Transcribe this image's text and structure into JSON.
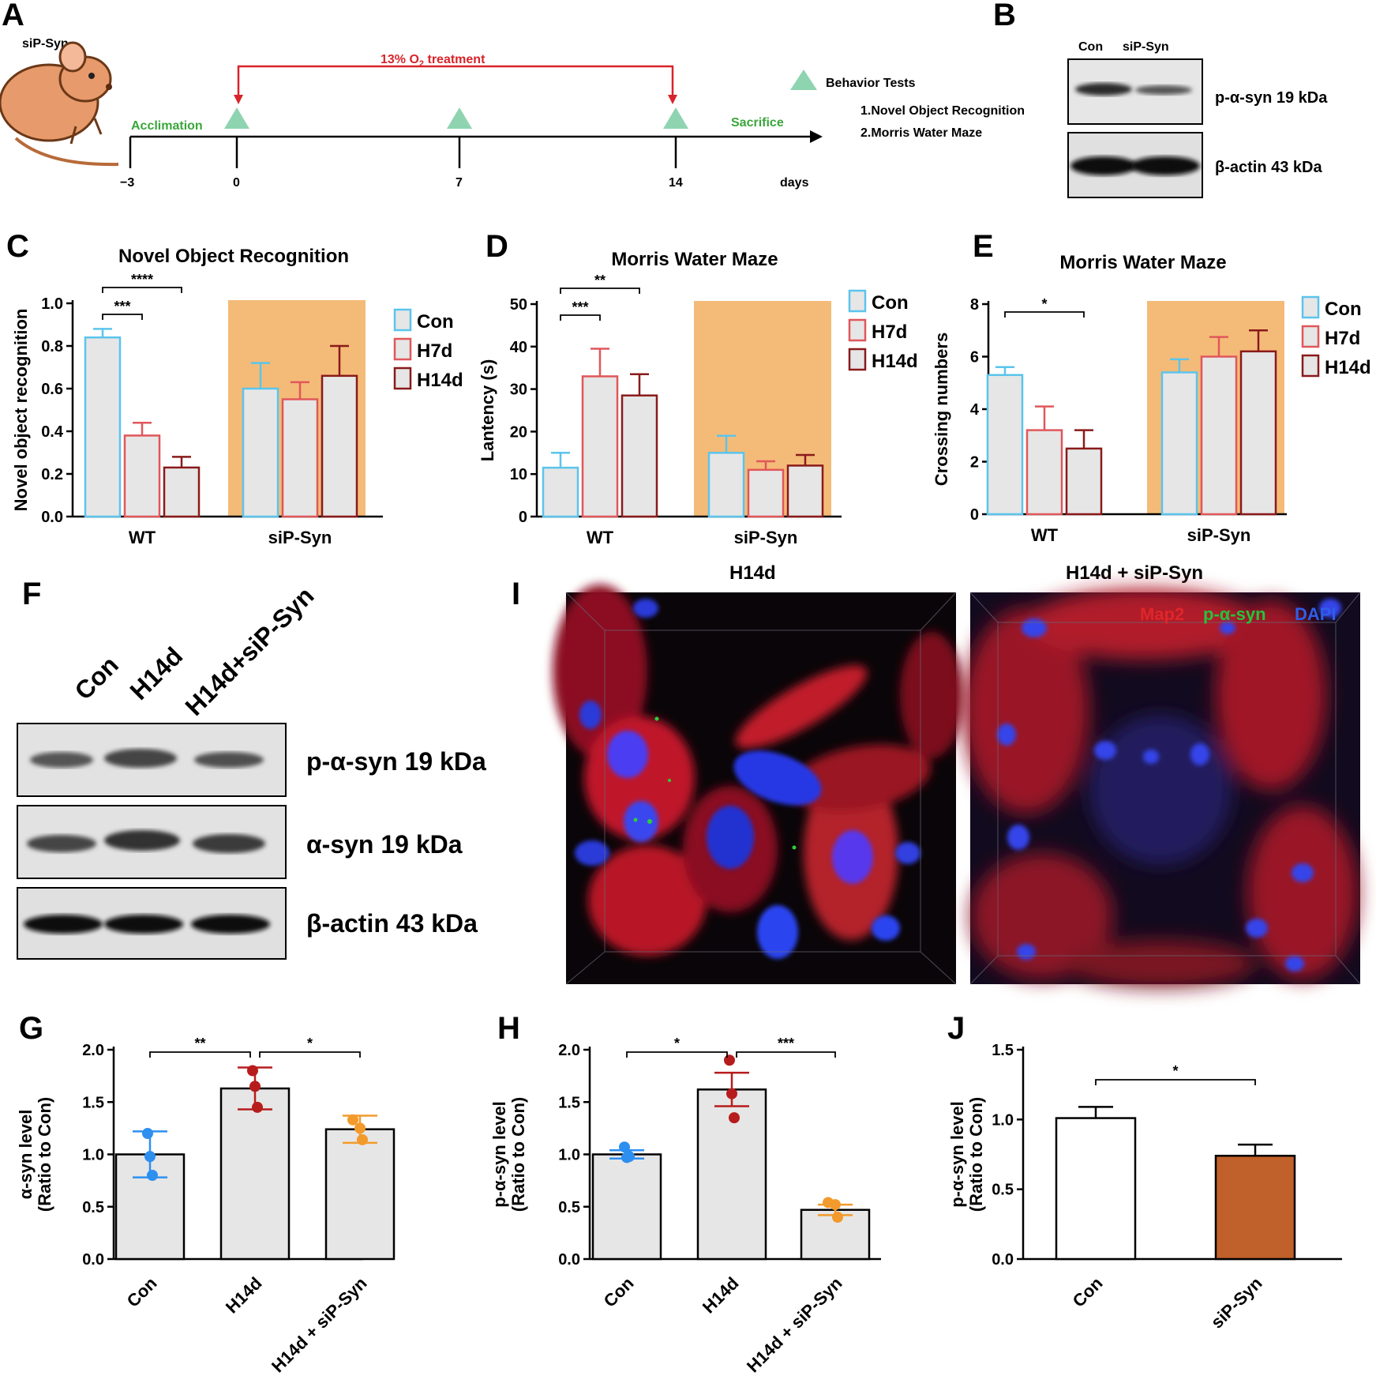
{
  "panels": {
    "A": {
      "letter": "A",
      "model_label": "siP-Syn",
      "treatment_label": "13% O",
      "treatment_sub": "2",
      "treatment_suffix": " treatment",
      "acclimation": "Acclimation",
      "sacrifice": "Sacrifice",
      "ticks": [
        "−3",
        "0",
        "7",
        "14"
      ],
      "days_label": "days",
      "behavior_title": "Behavior Tests",
      "behavior_items": [
        "1.Novel Object Recognition",
        "2.Morris Water Maze"
      ],
      "colors": {
        "timeline_green": "#8fd4b0",
        "red_bracket": "#d9232a",
        "label_green": "#3aa63a",
        "mouse_body": "#e79a6b"
      }
    },
    "B": {
      "letter": "B",
      "lanes": [
        "Con",
        "siP-Syn"
      ],
      "bands": [
        "p-α-syn 19 kDa",
        "β-actin 43 kDa"
      ]
    },
    "F": {
      "letter": "F",
      "lanes": [
        "Con",
        "H14d",
        "H14d+siP-Syn"
      ],
      "bands": [
        "p-α-syn 19 kDa",
        "α-syn 19 kDa",
        "β-actin 43 kDa"
      ]
    },
    "I": {
      "letter": "I",
      "titles": [
        "H14d",
        "H14d + siP-Syn"
      ],
      "legend": {
        "red": "Map2",
        "green": "p-α-syn",
        "blue": "DAPI"
      },
      "colors": {
        "map2": "#d42020",
        "p_syn": "#2ccf3c",
        "dapi": "#2a3ad8"
      }
    }
  },
  "chart_data": [
    {
      "id": "C",
      "letter": "C",
      "type": "bar",
      "title": "Novel Object Recognition",
      "ylabel": "Novel object recognition",
      "xlabel": "",
      "ylim": [
        0,
        1.0
      ],
      "yticks": [
        "0.0",
        "0.2",
        "0.4",
        "0.6",
        "0.8",
        "1.0"
      ],
      "groups": [
        "WT",
        "siP-Syn"
      ],
      "legend": [
        "Con",
        "H7d",
        "H14d"
      ],
      "series_colors": [
        "#5bc4ec",
        "#e0575a",
        "#8a1a1a"
      ],
      "values": [
        [
          0.84,
          0.38,
          0.23
        ],
        [
          0.6,
          0.55,
          0.66
        ]
      ],
      "errors": [
        [
          0.04,
          0.06,
          0.05
        ],
        [
          0.12,
          0.08,
          0.14
        ]
      ],
      "highlight_group": 1,
      "highlight_color": "#f4bb78",
      "significance": [
        {
          "from": [
            0,
            0
          ],
          "to": [
            0,
            2
          ],
          "label": "****"
        },
        {
          "from": [
            0,
            0
          ],
          "to": [
            0,
            1
          ],
          "label": "***"
        }
      ]
    },
    {
      "id": "D",
      "letter": "D",
      "type": "bar",
      "title": "Morris Water Maze",
      "ylabel": "Lantency (s)",
      "xlabel": "",
      "ylim": [
        0,
        50
      ],
      "yticks": [
        "0",
        "10",
        "20",
        "30",
        "40",
        "50"
      ],
      "groups": [
        "WT",
        "siP-Syn"
      ],
      "legend": [
        "Con",
        "H7d",
        "H14d"
      ],
      "series_colors": [
        "#5bc4ec",
        "#e0575a",
        "#8a1a1a"
      ],
      "values": [
        [
          11.5,
          33,
          28.5
        ],
        [
          15,
          11,
          12
        ]
      ],
      "errors": [
        [
          3.5,
          6.5,
          5
        ],
        [
          4,
          2,
          2.5
        ]
      ],
      "highlight_group": 1,
      "highlight_color": "#f4bb78",
      "significance": [
        {
          "from": [
            0,
            0
          ],
          "to": [
            0,
            2
          ],
          "label": "**"
        },
        {
          "from": [
            0,
            0
          ],
          "to": [
            0,
            1
          ],
          "label": "***"
        }
      ]
    },
    {
      "id": "E",
      "letter": "E",
      "type": "bar",
      "title": "Morris Water Maze",
      "ylabel": "Crossing numbers",
      "xlabel": "",
      "ylim": [
        0,
        8
      ],
      "yticks": [
        "0",
        "2",
        "4",
        "6",
        "8"
      ],
      "groups": [
        "WT",
        "siP-Syn"
      ],
      "legend": [
        "Con",
        "H7d",
        "H14d"
      ],
      "series_colors": [
        "#5bc4ec",
        "#e0575a",
        "#8a1a1a"
      ],
      "values": [
        [
          5.3,
          3.2,
          2.5
        ],
        [
          5.4,
          6.0,
          6.2
        ]
      ],
      "errors": [
        [
          0.3,
          0.9,
          0.7
        ],
        [
          0.5,
          0.75,
          0.8
        ]
      ],
      "highlight_group": 1,
      "highlight_color": "#f4bb78",
      "significance": [
        {
          "from": [
            0,
            0
          ],
          "to": [
            0,
            2
          ],
          "label": "*"
        }
      ]
    },
    {
      "id": "G",
      "letter": "G",
      "type": "bar",
      "ylabel": "α-syn level",
      "ylabel2": "(Ratio to Con)",
      "xlabel": "",
      "ylim": [
        0,
        2.0
      ],
      "yticks": [
        "0.0",
        "0.5",
        "1.0",
        "1.5",
        "2.0"
      ],
      "categories": [
        "Con",
        "H14d",
        "H14d + siP-Syn"
      ],
      "values": [
        1.0,
        1.63,
        1.24
      ],
      "errors": [
        0.22,
        0.2,
        0.13
      ],
      "points": [
        [
          1.2,
          0.98,
          0.8
        ],
        [
          1.8,
          1.65,
          1.45
        ],
        [
          1.33,
          1.25,
          1.14
        ]
      ],
      "point_colors": [
        "#2d8ff0",
        "#b71c1c",
        "#f39a2c"
      ],
      "bar_fill": "#e6e6e6",
      "significance": [
        {
          "from": 0,
          "to": 1,
          "label": "**"
        },
        {
          "from": 1,
          "to": 2,
          "label": "*"
        }
      ]
    },
    {
      "id": "H",
      "letter": "H",
      "type": "bar",
      "ylabel": "p-α-syn level",
      "ylabel2": "(Ratio to Con)",
      "xlabel": "",
      "ylim": [
        0,
        2.0
      ],
      "yticks": [
        "0.0",
        "0.5",
        "1.0",
        "1.5",
        "2.0"
      ],
      "categories": [
        "Con",
        "H14d",
        "H14d + siP-Syn"
      ],
      "values": [
        1.0,
        1.62,
        0.47
      ],
      "errors": [
        0.04,
        0.16,
        0.05
      ],
      "points": [
        [
          1.07,
          0.97,
          0.98
        ],
        [
          1.9,
          1.58,
          1.35
        ],
        [
          0.54,
          0.52,
          0.4
        ]
      ],
      "point_colors": [
        "#2d8ff0",
        "#b71c1c",
        "#f39a2c"
      ],
      "bar_fill": "#e6e6e6",
      "significance": [
        {
          "from": 0,
          "to": 1,
          "label": "*"
        },
        {
          "from": 1,
          "to": 2,
          "label": "***"
        }
      ]
    },
    {
      "id": "J",
      "letter": "J",
      "type": "bar",
      "ylabel": "p-α-syn level",
      "ylabel2": "(Ratio to Con)",
      "xlabel": "",
      "ylim": [
        0,
        1.5
      ],
      "yticks": [
        "0.0",
        "0.5",
        "1.0",
        "1.5"
      ],
      "categories": [
        "Con",
        "siP-Syn"
      ],
      "values": [
        1.01,
        0.74
      ],
      "errors": [
        0.08,
        0.08
      ],
      "bar_fills": [
        "#ffffff",
        "#c0602a"
      ],
      "significance": [
        {
          "from": 0,
          "to": 1,
          "label": "*"
        }
      ]
    }
  ]
}
